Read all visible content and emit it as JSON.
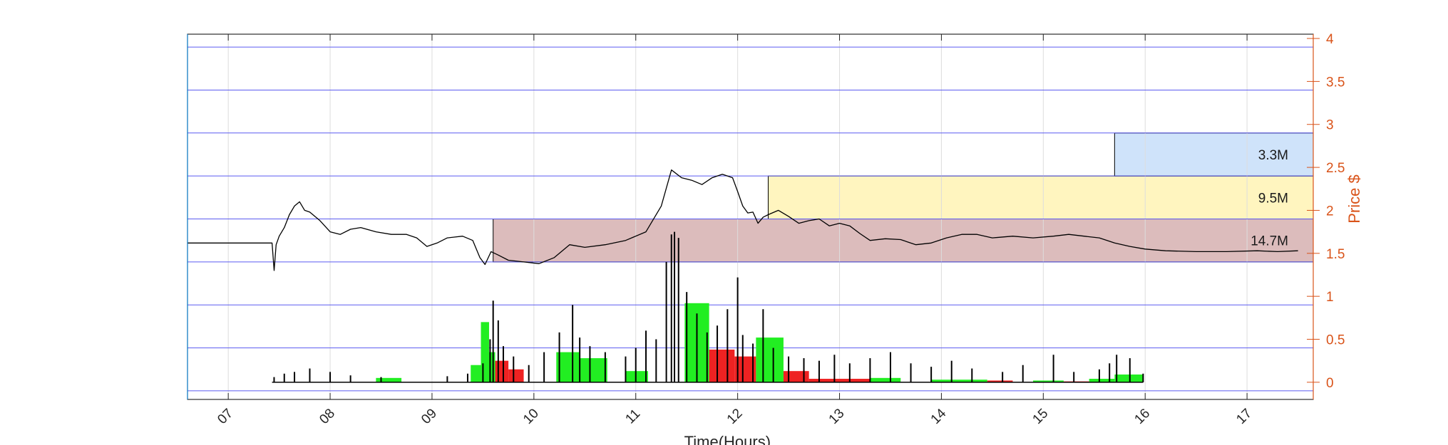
{
  "chart_data": {
    "type": "line",
    "title": "",
    "xlabel": "Time(Hours)",
    "ylabel": "Price $",
    "xlim": [
      6.6,
      17.65
    ],
    "ylim": [
      -0.2,
      4.05
    ],
    "y_axis_location": "right",
    "x_ticks": [
      "07",
      "08",
      "09",
      "10",
      "11",
      "12",
      "13",
      "14",
      "15",
      "16",
      "17"
    ],
    "y_ticks": [
      "0",
      "0.5",
      "1",
      "1.5",
      "2",
      "2.5",
      "3",
      "3.5",
      "4"
    ],
    "grid": true,
    "colors": {
      "price_line": "#000000",
      "volume_bars": "#000000",
      "up_volume": "#22ee22",
      "down_volume": "#ee2222",
      "y_axis": "#d95319",
      "horizontal_levels": "#5b5bf0",
      "zone_low": "#dcbcbc",
      "zone_mid": "#fff5bf",
      "zone_high": "#cfe3fa"
    },
    "price_levels": [
      -0.1,
      0.4,
      0.9,
      1.4,
      1.9,
      2.4,
      2.9,
      3.4,
      3.9
    ],
    "price_series": {
      "name": "Price",
      "x": [
        6.6,
        7.43,
        7.45,
        7.47,
        7.5,
        7.55,
        7.6,
        7.65,
        7.7,
        7.75,
        7.8,
        7.9,
        8.0,
        8.1,
        8.2,
        8.3,
        8.45,
        8.6,
        8.75,
        8.85,
        8.95,
        9.05,
        9.15,
        9.3,
        9.4,
        9.47,
        9.52,
        9.58,
        9.65,
        9.75,
        9.9,
        10.05,
        10.2,
        10.35,
        10.5,
        10.7,
        10.9,
        11.1,
        11.25,
        11.35,
        11.45,
        11.55,
        11.65,
        11.75,
        11.85,
        11.95,
        12.0,
        12.05,
        12.1,
        12.15,
        12.2,
        12.25,
        12.3,
        12.4,
        12.5,
        12.6,
        12.7,
        12.8,
        12.9,
        13.0,
        13.1,
        13.2,
        13.3,
        13.45,
        13.6,
        13.75,
        13.9,
        14.05,
        14.2,
        14.35,
        14.5,
        14.7,
        14.9,
        15.1,
        15.25,
        15.4,
        15.55,
        15.7,
        15.85,
        16.0,
        16.2,
        16.5,
        16.8,
        17.1,
        17.3,
        17.5
      ],
      "y": [
        1.62,
        1.62,
        1.3,
        1.6,
        1.7,
        1.8,
        1.95,
        2.05,
        2.1,
        2.0,
        1.98,
        1.88,
        1.75,
        1.72,
        1.78,
        1.8,
        1.75,
        1.72,
        1.72,
        1.68,
        1.58,
        1.62,
        1.68,
        1.7,
        1.65,
        1.45,
        1.37,
        1.52,
        1.48,
        1.42,
        1.4,
        1.38,
        1.45,
        1.6,
        1.57,
        1.6,
        1.65,
        1.75,
        2.05,
        2.47,
        2.38,
        2.35,
        2.3,
        2.38,
        2.42,
        2.38,
        2.22,
        2.05,
        1.97,
        1.98,
        1.85,
        1.92,
        1.95,
        2.0,
        1.93,
        1.85,
        1.88,
        1.9,
        1.82,
        1.85,
        1.82,
        1.73,
        1.65,
        1.67,
        1.66,
        1.6,
        1.62,
        1.68,
        1.72,
        1.72,
        1.68,
        1.7,
        1.68,
        1.7,
        1.72,
        1.7,
        1.68,
        1.62,
        1.58,
        1.55,
        1.53,
        1.52,
        1.52,
        1.53,
        1.52,
        1.53
      ]
    },
    "volume_spikes": {
      "x": [
        7.45,
        7.55,
        7.65,
        7.8,
        8.0,
        8.2,
        8.5,
        9.15,
        9.35,
        9.5,
        9.57,
        9.6,
        9.65,
        9.7,
        9.8,
        9.95,
        10.1,
        10.25,
        10.38,
        10.45,
        10.55,
        10.7,
        10.9,
        11.0,
        11.1,
        11.2,
        11.3,
        11.35,
        11.38,
        11.42,
        11.5,
        11.6,
        11.7,
        11.8,
        11.9,
        12.0,
        12.05,
        12.15,
        12.25,
        12.35,
        12.5,
        12.65,
        12.8,
        12.95,
        13.1,
        13.3,
        13.5,
        13.7,
        13.9,
        14.1,
        14.3,
        14.6,
        14.8,
        15.1,
        15.3,
        15.55,
        15.65,
        15.72,
        15.85,
        15.98
      ],
      "y": [
        0.06,
        0.1,
        0.12,
        0.16,
        0.12,
        0.08,
        0.06,
        0.07,
        0.1,
        0.22,
        0.5,
        0.95,
        0.72,
        0.42,
        0.3,
        0.2,
        0.35,
        0.58,
        0.9,
        0.52,
        0.42,
        0.35,
        0.3,
        0.4,
        0.6,
        0.5,
        1.4,
        1.72,
        1.75,
        1.68,
        1.05,
        0.8,
        0.58,
        0.66,
        0.85,
        1.22,
        0.55,
        0.45,
        0.85,
        0.4,
        0.3,
        0.28,
        0.25,
        0.32,
        0.22,
        0.28,
        0.35,
        0.22,
        0.18,
        0.25,
        0.16,
        0.12,
        0.2,
        0.32,
        0.12,
        0.15,
        0.22,
        0.32,
        0.28,
        0.1
      ]
    },
    "volume_blocks": [
      {
        "x0": 8.45,
        "x1": 8.7,
        "value": 0.05,
        "direction": "up"
      },
      {
        "x0": 9.38,
        "x1": 9.48,
        "value": 0.2,
        "direction": "up"
      },
      {
        "x0": 9.48,
        "x1": 9.56,
        "value": 0.7,
        "direction": "up"
      },
      {
        "x0": 9.56,
        "x1": 9.62,
        "value": 0.35,
        "direction": "up"
      },
      {
        "x0": 9.62,
        "x1": 9.75,
        "value": 0.25,
        "direction": "down"
      },
      {
        "x0": 9.75,
        "x1": 9.9,
        "value": 0.15,
        "direction": "down"
      },
      {
        "x0": 10.22,
        "x1": 10.45,
        "value": 0.35,
        "direction": "up"
      },
      {
        "x0": 10.45,
        "x1": 10.72,
        "value": 0.28,
        "direction": "up"
      },
      {
        "x0": 10.9,
        "x1": 11.12,
        "value": 0.13,
        "direction": "up"
      },
      {
        "x0": 11.48,
        "x1": 11.72,
        "value": 0.92,
        "direction": "up"
      },
      {
        "x0": 11.72,
        "x1": 11.97,
        "value": 0.38,
        "direction": "down"
      },
      {
        "x0": 11.97,
        "x1": 12.18,
        "value": 0.3,
        "direction": "down"
      },
      {
        "x0": 12.18,
        "x1": 12.45,
        "value": 0.52,
        "direction": "up"
      },
      {
        "x0": 12.45,
        "x1": 12.7,
        "value": 0.13,
        "direction": "down"
      },
      {
        "x0": 12.7,
        "x1": 13.3,
        "value": 0.04,
        "direction": "down"
      },
      {
        "x0": 13.3,
        "x1": 13.6,
        "value": 0.05,
        "direction": "up"
      },
      {
        "x0": 13.9,
        "x1": 14.45,
        "value": 0.03,
        "direction": "up"
      },
      {
        "x0": 14.45,
        "x1": 14.7,
        "value": 0.02,
        "direction": "down"
      },
      {
        "x0": 14.9,
        "x1": 15.2,
        "value": 0.02,
        "direction": "up"
      },
      {
        "x0": 15.2,
        "x1": 15.45,
        "value": 0.01,
        "direction": "down"
      },
      {
        "x0": 15.45,
        "x1": 15.7,
        "value": 0.04,
        "direction": "up"
      },
      {
        "x0": 15.7,
        "x1": 15.98,
        "value": 0.09,
        "direction": "up"
      }
    ],
    "zones": [
      {
        "label": "14.7M",
        "x0": 9.6,
        "x1": 17.65,
        "y0": 1.4,
        "y1": 1.9,
        "color_key": "zone_low"
      },
      {
        "label": "9.5M",
        "x0": 12.3,
        "x1": 17.65,
        "y0": 1.9,
        "y1": 2.4,
        "color_key": "zone_mid"
      },
      {
        "label": "3.3M",
        "x0": 15.7,
        "x1": 17.65,
        "y0": 2.4,
        "y1": 2.9,
        "color_key": "zone_high"
      }
    ]
  }
}
